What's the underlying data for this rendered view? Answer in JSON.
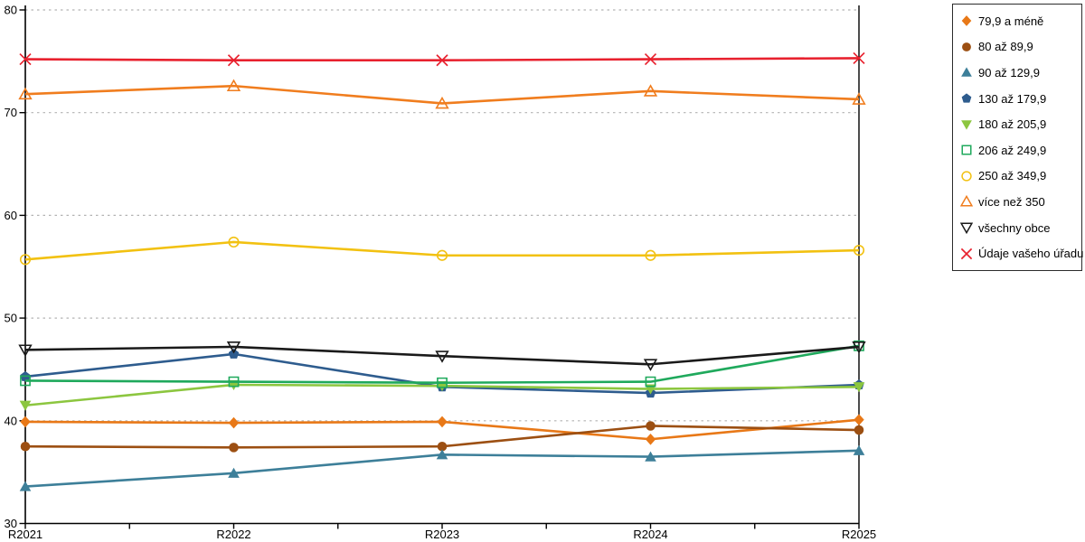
{
  "chart_data": {
    "type": "line",
    "title": "",
    "xlabel": "",
    "ylabel": "",
    "x_categories": [
      "R2021",
      "R2022",
      "R2023",
      "R2024",
      "R2025"
    ],
    "ylim": [
      30,
      80
    ],
    "y_ticks": [
      30,
      40,
      50,
      60,
      70,
      80
    ],
    "grid": {
      "horizontal": true,
      "style": "dotted",
      "color": "#B3B3B3",
      "at": [
        40,
        50,
        60,
        70,
        80
      ]
    },
    "axis_color": "#000000",
    "legend_position": "right",
    "series": [
      {
        "name": "79,9 a méně",
        "marker": "diamond",
        "marker_style": "filled",
        "color": "#E87817",
        "values": [
          39.9,
          39.8,
          39.9,
          38.2,
          40.1
        ]
      },
      {
        "name": "80 až 89,9",
        "marker": "circle",
        "marker_style": "filled",
        "color": "#9C4F12",
        "values": [
          37.5,
          37.4,
          37.5,
          39.5,
          39.1
        ]
      },
      {
        "name": "90 až 129,9",
        "marker": "triangle-up",
        "marker_style": "filled",
        "color": "#3D7F99",
        "values": [
          33.6,
          34.9,
          36.7,
          36.5,
          37.1
        ]
      },
      {
        "name": "130 až 179,9",
        "marker": "pentagon",
        "marker_style": "filled",
        "color": "#2E5C8E",
        "values": [
          44.3,
          46.5,
          43.3,
          42.7,
          43.5
        ]
      },
      {
        "name": "180 až 205,9",
        "marker": "triangle-down",
        "marker_style": "filled",
        "color": "#8CC63F",
        "values": [
          41.5,
          43.5,
          43.4,
          43.1,
          43.3
        ]
      },
      {
        "name": "206 až 249,9",
        "marker": "square",
        "marker_style": "open",
        "color": "#1FA95C",
        "values": [
          43.9,
          43.8,
          43.7,
          43.8,
          47.3
        ]
      },
      {
        "name": "250 až 349,9",
        "marker": "circle",
        "marker_style": "open",
        "color": "#F2C111",
        "values": [
          55.7,
          57.4,
          56.1,
          56.1,
          56.6
        ]
      },
      {
        "name": "více než 350",
        "marker": "triangle-up",
        "marker_style": "open",
        "color": "#F07D1E",
        "values": [
          71.8,
          72.6,
          70.9,
          72.1,
          71.3
        ]
      },
      {
        "name": "všechny obce",
        "marker": "triangle-down",
        "marker_style": "open",
        "color": "#1A1A1A",
        "values": [
          46.9,
          47.2,
          46.3,
          45.5,
          47.2
        ]
      },
      {
        "name": "Údaje vašeho úřadu",
        "marker": "x",
        "marker_style": "open",
        "color": "#E8212E",
        "values": [
          75.2,
          75.1,
          75.1,
          75.2,
          75.3
        ]
      }
    ]
  }
}
